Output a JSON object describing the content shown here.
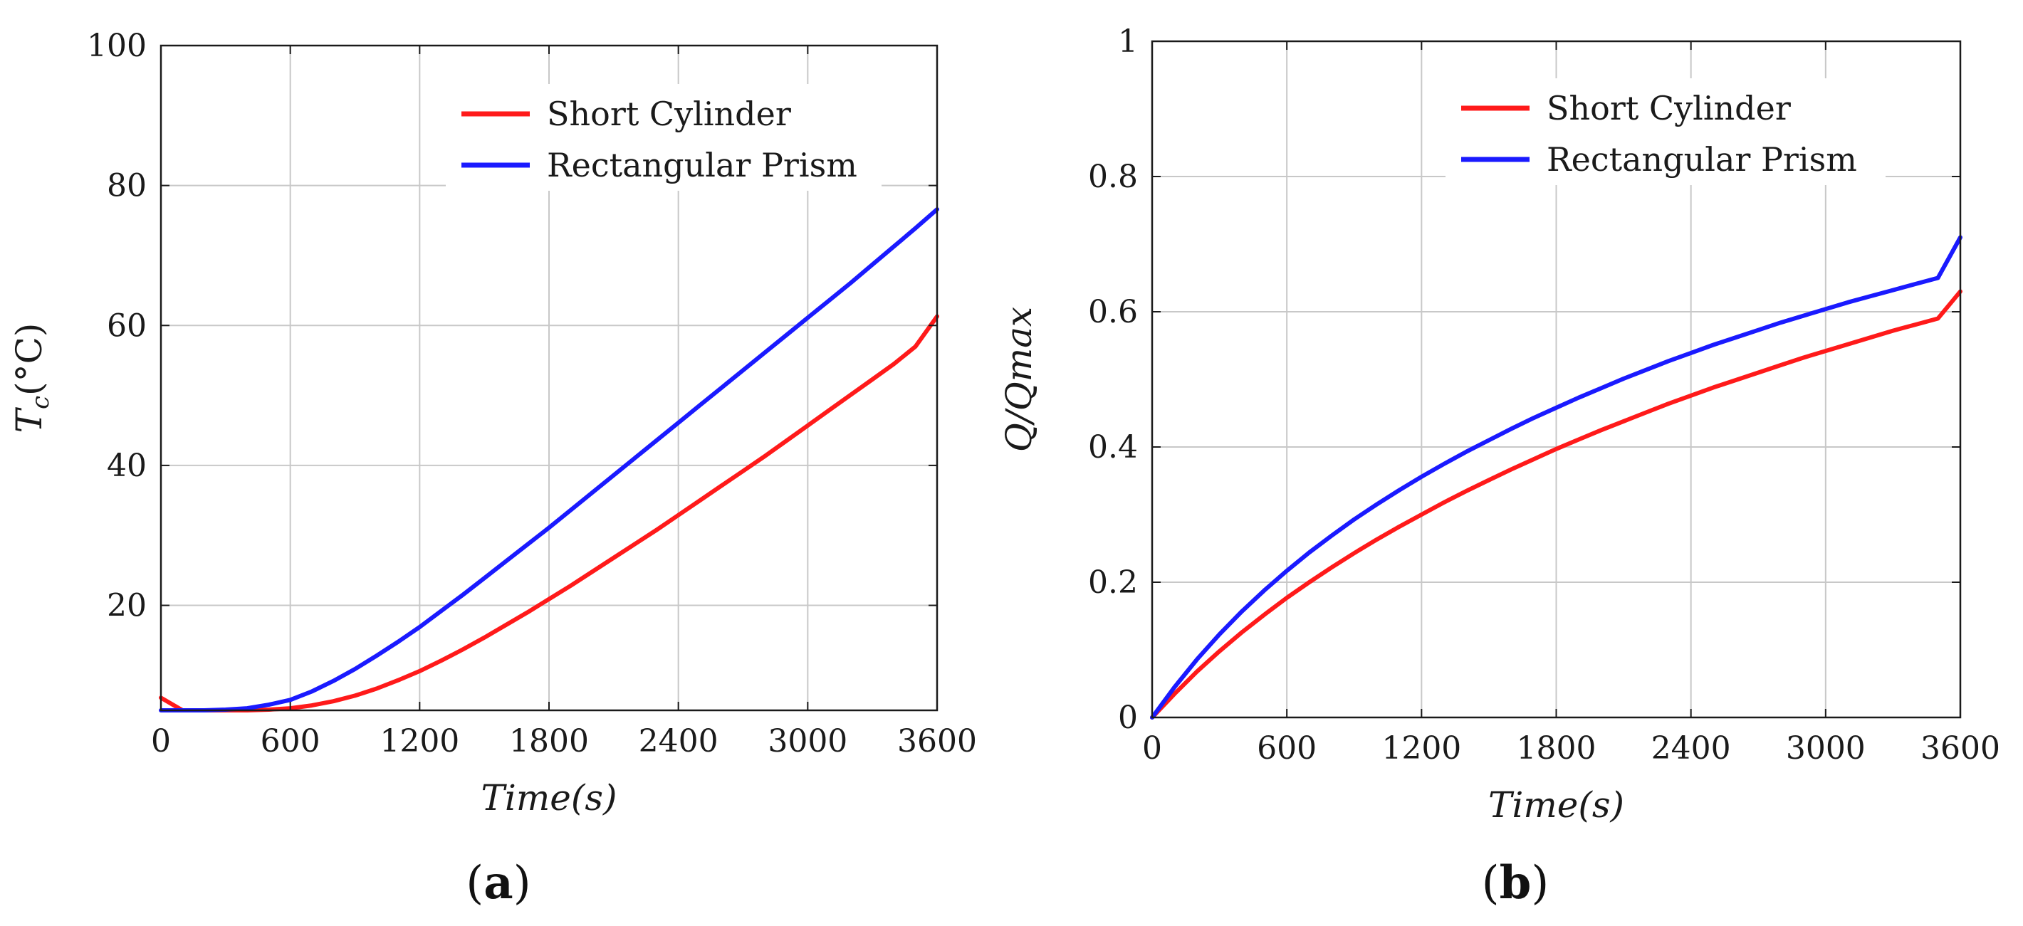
{
  "chart_data": [
    {
      "id": "a",
      "type": "line",
      "panel_label": "a",
      "xlabel": "Time(s)",
      "ylabel": "T_c(°C)",
      "xlim": [
        0,
        3600
      ],
      "ylim": [
        5,
        100
      ],
      "xticks": [
        0,
        600,
        1200,
        1800,
        2400,
        3000,
        3600
      ],
      "yticks": [
        20,
        40,
        60,
        80,
        100
      ],
      "grid": true,
      "legend_position": "top-right",
      "series": [
        {
          "name": "Short Cylinder",
          "color": "#ff1a1a",
          "x": [
            0,
            100,
            200,
            300,
            400,
            500,
            600,
            700,
            800,
            900,
            1000,
            1100,
            1200,
            1300,
            1400,
            1500,
            1600,
            1700,
            1800,
            1900,
            2000,
            2100,
            2200,
            2300,
            2400,
            2500,
            2600,
            2700,
            2800,
            2900,
            3000,
            3100,
            3200,
            3300,
            3400,
            3500,
            3600
          ],
          "values": [
            6.8,
            5.0,
            5.0,
            5.0,
            5.0,
            5.1,
            5.3,
            5.7,
            6.3,
            7.1,
            8.1,
            9.3,
            10.6,
            12.1,
            13.7,
            15.4,
            17.2,
            19.0,
            20.9,
            22.8,
            24.8,
            26.8,
            28.8,
            30.8,
            32.9,
            35.0,
            37.1,
            39.2,
            41.3,
            43.5,
            45.7,
            47.9,
            50.1,
            52.3,
            54.5,
            57.0,
            61.3
          ]
        },
        {
          "name": "Rectangular Prism",
          "color": "#1a1aff",
          "x": [
            0,
            100,
            200,
            300,
            400,
            500,
            600,
            700,
            800,
            900,
            1000,
            1100,
            1200,
            1300,
            1400,
            1500,
            1600,
            1700,
            1800,
            1900,
            2000,
            2100,
            2200,
            2300,
            2400,
            2500,
            2600,
            2700,
            2800,
            2900,
            3000,
            3100,
            3200,
            3300,
            3400,
            3500,
            3600
          ],
          "values": [
            5.0,
            5.0,
            5.0,
            5.1,
            5.3,
            5.8,
            6.5,
            7.7,
            9.2,
            10.9,
            12.8,
            14.8,
            16.9,
            19.2,
            21.5,
            23.9,
            26.3,
            28.7,
            31.1,
            33.6,
            36.1,
            38.6,
            41.1,
            43.6,
            46.1,
            48.6,
            51.1,
            53.6,
            56.1,
            58.6,
            61.1,
            63.6,
            66.1,
            68.7,
            71.3,
            73.9,
            76.6
          ]
        }
      ]
    },
    {
      "id": "b",
      "type": "line",
      "panel_label": "b",
      "xlabel": "Time(s)",
      "ylabel": "Q/Qmax",
      "xlim": [
        0,
        3600
      ],
      "ylim": [
        0,
        1
      ],
      "xticks": [
        0,
        600,
        1200,
        1800,
        2400,
        3000,
        3600
      ],
      "yticks": [
        0,
        0.2,
        0.4,
        0.6,
        0.8,
        1
      ],
      "grid": true,
      "legend_position": "top-right",
      "series": [
        {
          "name": "Short Cylinder",
          "color": "#ff1a1a",
          "x": [
            0,
            100,
            200,
            300,
            400,
            500,
            600,
            700,
            800,
            900,
            1000,
            1100,
            1200,
            1300,
            1400,
            1500,
            1600,
            1700,
            1800,
            1900,
            2000,
            2100,
            2200,
            2300,
            2400,
            2500,
            2600,
            2700,
            2800,
            2900,
            3000,
            3100,
            3200,
            3300,
            3400,
            3500,
            3600
          ],
          "values": [
            0.0,
            0.035,
            0.068,
            0.098,
            0.126,
            0.152,
            0.177,
            0.2,
            0.222,
            0.243,
            0.263,
            0.282,
            0.3,
            0.318,
            0.335,
            0.351,
            0.367,
            0.382,
            0.397,
            0.411,
            0.425,
            0.438,
            0.451,
            0.464,
            0.476,
            0.488,
            0.499,
            0.51,
            0.521,
            0.532,
            0.542,
            0.552,
            0.562,
            0.572,
            0.581,
            0.59,
            0.63
          ]
        },
        {
          "name": "Rectangular Prism",
          "color": "#1a1aff",
          "x": [
            0,
            100,
            200,
            300,
            400,
            500,
            600,
            700,
            800,
            900,
            1000,
            1100,
            1200,
            1300,
            1400,
            1500,
            1600,
            1700,
            1800,
            1900,
            2000,
            2100,
            2200,
            2300,
            2400,
            2500,
            2600,
            2700,
            2800,
            2900,
            3000,
            3100,
            3200,
            3300,
            3400,
            3500,
            3600
          ],
          "values": [
            0.0,
            0.045,
            0.086,
            0.123,
            0.157,
            0.188,
            0.217,
            0.244,
            0.269,
            0.293,
            0.315,
            0.336,
            0.356,
            0.375,
            0.393,
            0.41,
            0.427,
            0.443,
            0.458,
            0.473,
            0.487,
            0.501,
            0.514,
            0.527,
            0.539,
            0.551,
            0.562,
            0.573,
            0.584,
            0.594,
            0.604,
            0.614,
            0.623,
            0.632,
            0.641,
            0.65,
            0.71
          ]
        }
      ]
    }
  ]
}
